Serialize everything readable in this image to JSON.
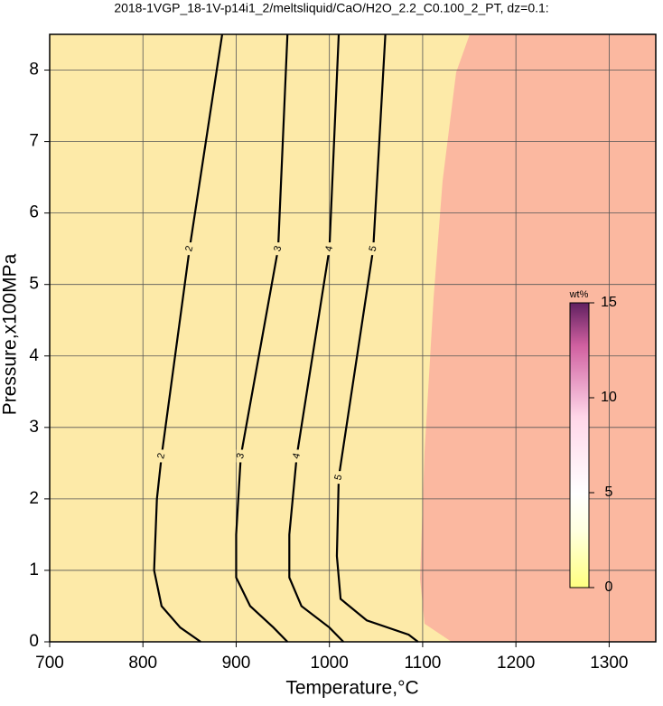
{
  "chart_data": {
    "type": "contour",
    "title": "2018-1VGP_18-1V-p14i1_2/meltsliquid/CaO/H2O_2.2_C0.100_2_PT, dz=0.1:",
    "x_label": "Temperature,°C",
    "y_label": "Pressure,x100MPa",
    "xlim": [
      700,
      1350
    ],
    "xticks": [
      700,
      800,
      900,
      1000,
      1100,
      1200,
      1300
    ],
    "ylim": [
      0,
      8.5
    ],
    "yticks": [
      0,
      1,
      2,
      3,
      4,
      5,
      6,
      7,
      8
    ],
    "grid": true,
    "contours": [
      {
        "level": 2,
        "x": [
          885,
          850,
          820,
          815,
          812,
          820,
          840,
          862
        ],
        "y": [
          8.5,
          5.5,
          2.6,
          2,
          1,
          0.5,
          0.2,
          0
        ]
      },
      {
        "level": 3,
        "x": [
          955,
          945,
          905,
          900,
          900,
          915,
          940,
          955
        ],
        "y": [
          8.5,
          5.5,
          2.6,
          1.5,
          0.9,
          0.5,
          0.2,
          0
        ]
      },
      {
        "level": 4,
        "x": [
          1010,
          1000,
          965,
          957,
          957,
          970,
          1000,
          1015
        ],
        "y": [
          8.5,
          5.5,
          2.6,
          1.5,
          0.9,
          0.5,
          0.2,
          0
        ]
      },
      {
        "level": 5,
        "x": [
          1060,
          1047,
          1010,
          1008,
          1012,
          1040,
          1085,
          1095
        ],
        "y": [
          8.5,
          5.5,
          2.3,
          1.2,
          0.6,
          0.3,
          0.1,
          0
        ]
      }
    ],
    "colorbar": {
      "label": "wt%",
      "lim": [
        0,
        15
      ],
      "ticks": [
        0,
        5,
        10,
        15
      ]
    }
  }
}
